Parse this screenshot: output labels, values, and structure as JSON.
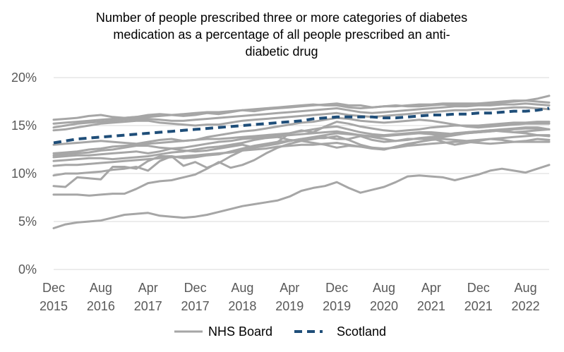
{
  "chart_data": {
    "type": "line",
    "title": "Number of people prescribed three or more categories of diabetes medication  as a percentage of all people prescribed an anti-diabetic drug",
    "title_lines": [
      "Number of people prescribed three or more categories of diabetes",
      "medication  as a percentage of all people prescribed an anti-",
      "diabetic drug"
    ],
    "xlabel": "",
    "ylabel": "",
    "ylim": [
      0,
      20
    ],
    "y_ticks": [
      0,
      5,
      10,
      15,
      20
    ],
    "y_tick_labels": [
      "0%",
      "5%",
      "10%",
      "15%",
      "20%"
    ],
    "y_unit": "%",
    "grid": true,
    "legend_position": "bottom",
    "x": [
      "2015-12",
      "2016-02",
      "2016-04",
      "2016-06",
      "2016-08",
      "2016-10",
      "2016-12",
      "2017-02",
      "2017-04",
      "2017-06",
      "2017-08",
      "2017-10",
      "2017-12",
      "2018-02",
      "2018-04",
      "2018-06",
      "2018-08",
      "2018-10",
      "2018-12",
      "2019-02",
      "2019-04",
      "2019-06",
      "2019-08",
      "2019-10",
      "2019-12",
      "2020-02",
      "2020-04",
      "2020-06",
      "2020-08",
      "2020-10",
      "2020-12",
      "2021-02",
      "2021-04",
      "2021-06",
      "2021-08",
      "2021-10",
      "2021-12",
      "2022-02",
      "2022-04",
      "2022-06",
      "2022-08",
      "2022-10",
      "2022-12"
    ],
    "x_ticks": [
      {
        "month": "Dec",
        "year": "2015",
        "index": 0
      },
      {
        "month": "Aug",
        "year": "2016",
        "index": 4
      },
      {
        "month": "Apr",
        "year": "2017",
        "index": 8
      },
      {
        "month": "Dec",
        "year": "2017",
        "index": 12
      },
      {
        "month": "Aug",
        "year": "2018",
        "index": 16
      },
      {
        "month": "Apr",
        "year": "2019",
        "index": 20
      },
      {
        "month": "Dec",
        "year": "2019",
        "index": 24
      },
      {
        "month": "Aug",
        "year": "2020",
        "index": 28
      },
      {
        "month": "Apr",
        "year": "2021",
        "index": 32
      },
      {
        "month": "Dec",
        "year": "2021",
        "index": 36
      },
      {
        "month": "Aug",
        "year": "2022",
        "index": 40
      }
    ],
    "series": [
      {
        "legend": "NHS Board",
        "color": "#a6a6a6",
        "style": "solid",
        "values": [
          15.6,
          15.7,
          15.8,
          16.0,
          16.1,
          15.9,
          15.8,
          15.9,
          16.1,
          16.2,
          16.1,
          16.0,
          16.1,
          16.3,
          16.2,
          16.4,
          16.6,
          16.5,
          16.7,
          16.8,
          16.9,
          17.0,
          17.1,
          17.2,
          17.3,
          17.1,
          17.1,
          16.9,
          17.0,
          17.1,
          17.0,
          17.0,
          17.1,
          17.2,
          17.1,
          17.2,
          17.3,
          17.3,
          17.4,
          17.5,
          17.6,
          17.8,
          18.1
        ]
      },
      {
        "legend": "NHS Board",
        "color": "#a6a6a6",
        "style": "solid",
        "values": [
          15.2,
          15.3,
          15.4,
          15.5,
          15.6,
          15.7,
          15.8,
          15.9,
          15.9,
          16.0,
          16.1,
          16.2,
          16.3,
          16.4,
          16.4,
          16.5,
          16.6,
          16.7,
          16.8,
          16.9,
          17.0,
          17.1,
          17.2,
          17.1,
          17.1,
          16.9,
          16.8,
          16.9,
          17.0,
          17.0,
          17.1,
          17.2,
          17.2,
          17.3,
          17.3,
          17.3,
          17.3,
          17.4,
          17.5,
          17.6,
          17.6,
          17.5,
          17.4
        ]
      },
      {
        "legend": "NHS Board",
        "color": "#a6a6a6",
        "style": "solid",
        "values": [
          14.8,
          15.0,
          15.2,
          15.3,
          15.4,
          15.5,
          15.6,
          15.7,
          15.7,
          15.6,
          15.5,
          15.5,
          15.6,
          15.7,
          15.8,
          15.9,
          16.0,
          16.1,
          16.2,
          16.3,
          16.4,
          16.5,
          16.6,
          16.7,
          16.8,
          16.6,
          16.4,
          16.3,
          16.4,
          16.5,
          16.6,
          16.7,
          16.8,
          16.9,
          17.0,
          17.0,
          17.1,
          17.1,
          17.2,
          17.2,
          17.3,
          17.2,
          17.1
        ]
      },
      {
        "legend": "NHS Board",
        "color": "#a6a6a6",
        "style": "solid",
        "values": [
          14.5,
          14.6,
          14.8,
          15.0,
          15.2,
          15.3,
          15.4,
          15.5,
          15.5,
          15.3,
          15.2,
          15.1,
          15.0,
          15.1,
          15.1,
          15.3,
          15.5,
          15.6,
          15.7,
          15.8,
          15.9,
          16.0,
          16.1,
          16.2,
          16.3,
          16.1,
          16.0,
          15.9,
          16.0,
          16.1,
          16.2,
          16.3,
          16.4,
          16.5,
          16.6,
          16.6,
          16.7,
          16.7,
          16.8,
          16.9,
          16.9,
          16.8,
          16.7
        ]
      },
      {
        "legend": "NHS Board",
        "color": "#a6a6a6",
        "style": "solid",
        "values": [
          13.0,
          13.1,
          13.2,
          13.3,
          13.4,
          13.3,
          13.2,
          13.1,
          13.3,
          13.5,
          13.6,
          13.4,
          13.5,
          13.8,
          14.0,
          14.2,
          14.4,
          14.5,
          14.7,
          14.9,
          15.1,
          15.3,
          15.4,
          15.6,
          15.8,
          15.7,
          15.5,
          15.4,
          15.3,
          15.4,
          15.5,
          15.6,
          15.5,
          15.3,
          15.1,
          14.9,
          14.8,
          14.9,
          15.0,
          15.1,
          15.2,
          15.2,
          15.2
        ]
      },
      {
        "legend": "NHS Board",
        "color": "#a6a6a6",
        "style": "solid",
        "values": [
          12.1,
          12.2,
          12.3,
          12.5,
          12.6,
          12.8,
          12.9,
          13.0,
          13.1,
          13.2,
          13.3,
          13.4,
          13.5,
          13.6,
          13.6,
          13.7,
          13.8,
          13.9,
          14.0,
          14.1,
          14.2,
          14.4,
          14.6,
          14.8,
          14.9,
          14.6,
          14.3,
          14.1,
          14.0,
          14.1,
          14.2,
          14.3,
          14.3,
          14.2,
          14.1,
          14.2,
          14.3,
          14.4,
          14.5,
          14.6,
          14.7,
          14.7,
          14.6
        ]
      },
      {
        "legend": "NHS Board",
        "color": "#a6a6a6",
        "style": "solid",
        "values": [
          11.9,
          12.0,
          12.1,
          12.2,
          12.4,
          12.5,
          12.7,
          12.9,
          12.9,
          12.7,
          12.6,
          12.7,
          12.9,
          13.1,
          13.3,
          13.4,
          13.6,
          13.7,
          13.8,
          13.9,
          14.0,
          14.1,
          14.2,
          14.3,
          14.4,
          14.2,
          14.0,
          13.9,
          13.9,
          14.0,
          14.1,
          14.2,
          14.1,
          14.0,
          14.1,
          14.3,
          14.4,
          14.5,
          14.6,
          14.7,
          14.8,
          14.8,
          14.6
        ]
      },
      {
        "legend": "NHS Board",
        "color": "#a6a6a6",
        "style": "solid",
        "values": [
          11.7,
          11.8,
          11.9,
          11.9,
          12.0,
          12.1,
          12.2,
          12.3,
          12.1,
          12.3,
          12.6,
          12.4,
          12.3,
          12.4,
          12.6,
          12.8,
          13.0,
          12.7,
          12.9,
          13.1,
          13.4,
          13.6,
          13.8,
          14.0,
          14.2,
          14.1,
          14.0,
          13.8,
          13.6,
          13.4,
          13.5,
          13.7,
          13.8,
          14.0,
          14.2,
          14.3,
          14.4,
          14.5,
          14.4,
          14.3,
          14.4,
          14.5,
          14.6
        ]
      },
      {
        "legend": "NHS Board",
        "color": "#a6a6a6",
        "style": "solid",
        "values": [
          11.3,
          11.4,
          11.5,
          11.6,
          11.6,
          11.5,
          11.6,
          11.7,
          11.8,
          12.0,
          12.2,
          12.3,
          12.5,
          12.7,
          12.8,
          13.0,
          13.2,
          13.5,
          13.7,
          13.8,
          13.5,
          13.4,
          13.2,
          13.0,
          12.7,
          12.9,
          12.8,
          12.6,
          12.5,
          12.8,
          13.0,
          13.3,
          13.5,
          13.6,
          13.5,
          13.4,
          13.5,
          13.6,
          13.7,
          13.8,
          13.9,
          14.0,
          13.9
        ]
      },
      {
        "legend": "NHS Board",
        "color": "#a6a6a6",
        "style": "solid",
        "values": [
          10.8,
          10.9,
          10.9,
          11.0,
          11.1,
          11.2,
          11.3,
          11.4,
          11.5,
          11.6,
          11.7,
          11.8,
          11.9,
          12.0,
          12.1,
          12.2,
          12.4,
          12.5,
          12.6,
          12.8,
          12.9,
          13.0,
          13.0,
          13.1,
          13.2,
          13.0,
          12.8,
          12.7,
          12.6,
          12.7,
          12.9,
          13.0,
          13.1,
          13.2,
          13.3,
          13.3,
          13.2,
          13.1,
          13.2,
          13.3,
          13.3,
          13.3,
          13.3
        ]
      },
      {
        "legend": "NHS Board",
        "color": "#a6a6a6",
        "style": "solid",
        "values": [
          9.8,
          10.0,
          10.0,
          10.1,
          10.2,
          10.4,
          10.5,
          10.7,
          10.3,
          11.3,
          11.8,
          11.6,
          11.7,
          11.9,
          12.0,
          12.3,
          12.6,
          12.9,
          13.1,
          13.3,
          13.4,
          13.6,
          13.7,
          13.7,
          13.9,
          13.5,
          13.0,
          12.7,
          12.5,
          12.8,
          13.1,
          13.3,
          13.6,
          13.8,
          14.0,
          14.2,
          14.3,
          14.4,
          14.5,
          14.3,
          14.2,
          14.0,
          14.0
        ]
      },
      {
        "legend": "NHS Board",
        "color": "#a6a6a6",
        "style": "solid",
        "values": [
          8.7,
          8.6,
          9.6,
          9.5,
          9.4,
          10.7,
          10.7,
          10.5,
          11.3,
          11.8,
          11.8,
          10.8,
          11.2,
          10.6,
          11.1,
          11.8,
          12.4,
          12.7,
          13.0,
          13.3,
          14.2,
          14.5,
          14.3,
          14.9,
          15.4,
          15.2,
          14.9,
          14.7,
          14.5,
          14.4,
          14.5,
          14.6,
          14.8,
          14.9,
          15.0,
          15.0,
          15.0,
          15.1,
          15.2,
          15.3,
          15.3,
          15.4,
          15.4
        ]
      },
      {
        "legend": "NHS Board",
        "color": "#a6a6a6",
        "style": "solid",
        "values": [
          7.8,
          7.8,
          7.8,
          7.7,
          7.8,
          7.9,
          7.9,
          8.4,
          9.0,
          9.2,
          9.3,
          9.6,
          9.9,
          10.5,
          11.2,
          10.6,
          10.9,
          11.4,
          12.1,
          12.7,
          13.1,
          13.4,
          13.6,
          13.8,
          13.6,
          13.6,
          13.9,
          13.5,
          13.3,
          13.4,
          13.6,
          13.6,
          13.7,
          13.3,
          13.0,
          13.2,
          13.4,
          13.6,
          13.5,
          13.3,
          13.4,
          13.6,
          13.5
        ]
      },
      {
        "legend": "NHS Board",
        "color": "#a6a6a6",
        "style": "solid",
        "values": [
          4.3,
          4.7,
          4.9,
          5.0,
          5.1,
          5.4,
          5.7,
          5.8,
          5.9,
          5.6,
          5.5,
          5.4,
          5.5,
          5.7,
          6.0,
          6.3,
          6.6,
          6.8,
          7.0,
          7.2,
          7.6,
          8.2,
          8.5,
          8.7,
          9.1,
          8.5,
          8.0,
          8.3,
          8.6,
          9.1,
          9.7,
          9.8,
          9.7,
          9.6,
          9.3,
          9.6,
          9.9,
          10.3,
          10.5,
          10.3,
          10.1,
          10.5,
          10.9
        ]
      },
      {
        "legend": "Scotland",
        "color": "#1f4e79",
        "style": "dashed",
        "values": [
          13.2,
          13.4,
          13.6,
          13.7,
          13.8,
          13.9,
          14.0,
          14.1,
          14.2,
          14.3,
          14.4,
          14.5,
          14.6,
          14.7,
          14.8,
          14.9,
          15.0,
          15.1,
          15.2,
          15.3,
          15.4,
          15.5,
          15.7,
          15.8,
          15.9,
          15.9,
          15.9,
          15.9,
          15.8,
          15.8,
          15.9,
          16.0,
          16.1,
          16.1,
          16.2,
          16.2,
          16.3,
          16.3,
          16.4,
          16.5,
          16.5,
          16.6,
          16.8
        ]
      }
    ],
    "legend": [
      {
        "label": "NHS Board",
        "color": "#a6a6a6",
        "style": "solid"
      },
      {
        "label": "Scotland",
        "color": "#1f4e79",
        "style": "dashed"
      }
    ]
  }
}
